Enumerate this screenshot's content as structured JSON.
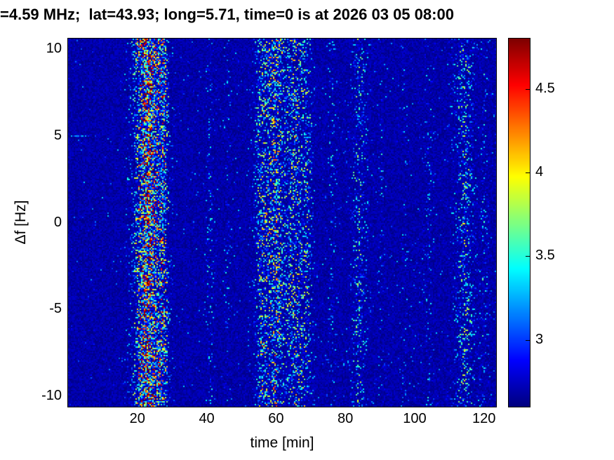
{
  "chart_data": {
    "type": "heatmap",
    "title": "=4.59 MHz;  lat=43.93; long=5.71, time=0 is at 2026 03 05 08:00",
    "xlabel": "time [min]",
    "ylabel": "Δf [Hz]",
    "xlim": [
      0,
      123.5
    ],
    "ylim": [
      -10.6,
      10.6
    ],
    "x_ticks": [
      20,
      40,
      60,
      80,
      100,
      120
    ],
    "y_ticks": [
      10,
      5,
      0,
      -5,
      -10
    ],
    "grid": false,
    "legend": null,
    "colormap": "jet",
    "colorbar": {
      "position": "right",
      "min": 2.6,
      "max": 4.8,
      "ticks": [
        3,
        3.5,
        4,
        4.5
      ]
    },
    "background_level": 2.65,
    "noise_seed": 42,
    "vertical_bands": [
      {
        "t_center": 23,
        "t_width": 3.5,
        "strength": 1.0
      },
      {
        "t_center": 27.5,
        "t_width": 1.5,
        "strength": 0.5
      },
      {
        "t_center": 41,
        "t_width": 1.0,
        "strength": 0.15
      },
      {
        "t_center": 46,
        "t_width": 0.8,
        "strength": 0.1
      },
      {
        "t_center": 56,
        "t_width": 2.0,
        "strength": 0.45
      },
      {
        "t_center": 60,
        "t_width": 2.5,
        "strength": 0.55
      },
      {
        "t_center": 65.5,
        "t_width": 2.5,
        "strength": 0.45
      },
      {
        "t_center": 69,
        "t_width": 1.5,
        "strength": 0.3
      },
      {
        "t_center": 76,
        "t_width": 1.0,
        "strength": 0.12
      },
      {
        "t_center": 84,
        "t_width": 2.0,
        "strength": 0.3
      },
      {
        "t_center": 90.5,
        "t_width": 0.8,
        "strength": 0.1
      },
      {
        "t_center": 97,
        "t_width": 0.8,
        "strength": 0.08
      },
      {
        "t_center": 104,
        "t_width": 1.0,
        "strength": 0.1
      },
      {
        "t_center": 114.5,
        "t_width": 2.5,
        "strength": 0.35
      },
      {
        "t_center": 120,
        "t_width": 1.0,
        "strength": 0.15
      }
    ],
    "horizontal_streaks": [
      {
        "freq": 5,
        "t_start": 0.5,
        "t_end": 9,
        "strength": 0.5
      }
    ]
  }
}
